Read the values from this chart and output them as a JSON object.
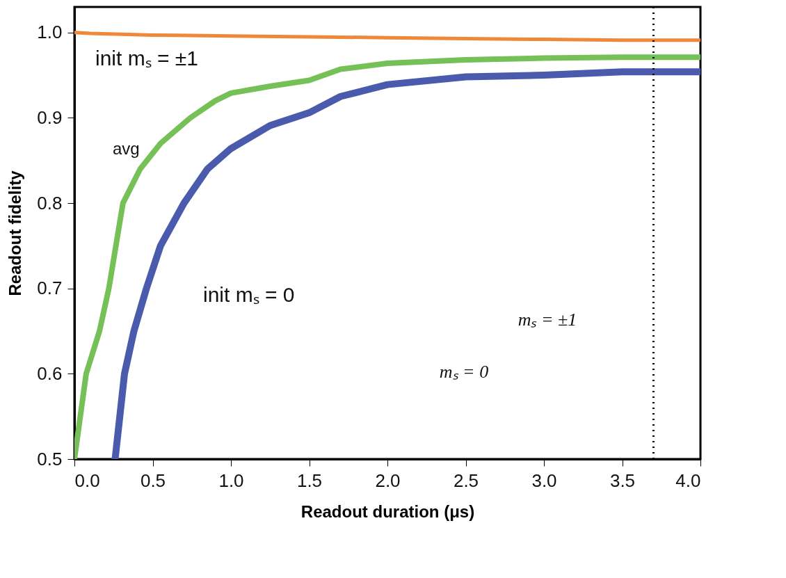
{
  "chart_data": {
    "type": "line",
    "xlabel": "Readout duration (μs)",
    "ylabel": "Readout fidelity",
    "xlim": [
      0,
      4.0
    ],
    "ylim": [
      0.5,
      1.03
    ],
    "xticks": [
      {
        "value": 0,
        "label": "0.0"
      },
      0.5,
      {
        "value": 1,
        "label": "1.0"
      },
      1.5,
      {
        "value": 2,
        "label": "2.0"
      },
      2.5,
      {
        "value": 3,
        "label": "3.0"
      },
      3.5,
      {
        "value": 4,
        "label": "4.0"
      }
    ],
    "yticks": [
      {
        "value": 0.5,
        "label": "0.5"
      },
      {
        "value": 0.6,
        "label": "0.6"
      },
      {
        "value": 0.7,
        "label": "0.7"
      },
      {
        "value": 0.8,
        "label": "0.8"
      },
      {
        "value": 0.9,
        "label": "0.9"
      },
      {
        "value": 1,
        "label": "1.0"
      }
    ],
    "grid": false,
    "marker": "none",
    "line_style": "solid",
    "series": [
      {
        "name": "init mₛ = ±1",
        "color": "#f0883a",
        "x": [
          0,
          0.1,
          0.5,
          1.0,
          1.5,
          2.0,
          2.5,
          3.0,
          3.5,
          4.0
        ],
        "values": [
          1.0,
          0.999,
          0.997,
          0.996,
          0.995,
          0.994,
          0.993,
          0.992,
          0.991,
          0.991
        ]
      },
      {
        "name": "avg",
        "color": "#75c157",
        "x": [
          0,
          0.075,
          0.16,
          0.22,
          0.31,
          0.42,
          0.55,
          0.74,
          0.9,
          1.0,
          1.25,
          1.5,
          1.7,
          2.0,
          2.5,
          3.0,
          3.5,
          4.0
        ],
        "values": [
          0.5,
          0.6,
          0.65,
          0.7,
          0.8,
          0.84,
          0.87,
          0.9,
          0.92,
          0.929,
          0.937,
          0.944,
          0.957,
          0.964,
          0.968,
          0.97,
          0.971,
          0.971
        ]
      },
      {
        "name": "init mₛ = 0",
        "color": "#4a5aad",
        "x": [
          0.26,
          0.32,
          0.38,
          0.46,
          0.55,
          0.7,
          0.85,
          1.0,
          1.25,
          1.5,
          1.7,
          2.0,
          2.5,
          3.0,
          3.5,
          4.0
        ],
        "values": [
          0.5,
          0.6,
          0.65,
          0.7,
          0.75,
          0.8,
          0.84,
          0.864,
          0.891,
          0.906,
          0.925,
          0.939,
          0.948,
          0.95,
          0.954,
          0.954
        ]
      }
    ],
    "ref_lines": [
      {
        "axis": "x",
        "value": 3.7,
        "color": "#000000",
        "line_style": "dotted"
      }
    ],
    "annotations": [
      "mₛ = 0",
      "mₛ = ±1"
    ]
  }
}
